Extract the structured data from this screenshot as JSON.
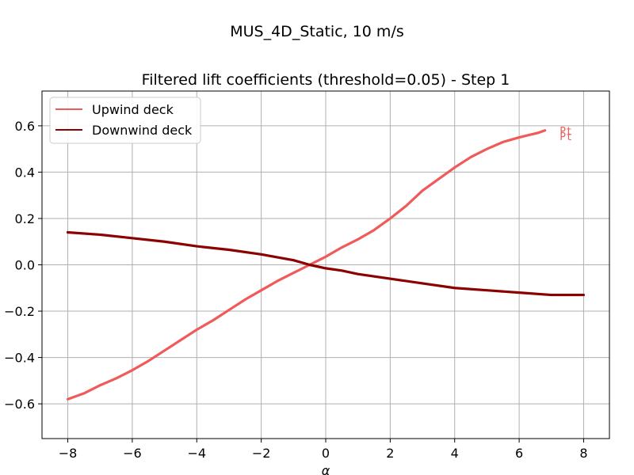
{
  "figure": {
    "suptitle": "MUS_4D_Static, 10 m/s"
  },
  "chart_data": {
    "type": "line",
    "title": "Filtered lift coefficients (threshold=0.05) - Step 1",
    "xlabel": "α",
    "ylabel": "",
    "xlim": [
      -8.8,
      8.8
    ],
    "ylim": [
      -0.75,
      0.75
    ],
    "xticks": [
      -8,
      -6,
      -4,
      -2,
      0,
      2,
      4,
      6,
      8
    ],
    "xtick_labels": [
      "−8",
      "−6",
      "−4",
      "−2",
      "0",
      "2",
      "4",
      "6",
      "8"
    ],
    "yticks": [
      -0.6,
      -0.4,
      -0.2,
      0.0,
      0.2,
      0.4,
      0.6
    ],
    "ytick_labels": [
      "−0.6",
      "−0.4",
      "−0.2",
      "0.0",
      "0.2",
      "0.4",
      "0.6"
    ],
    "grid": true,
    "legend_position": "upper-left",
    "series": [
      {
        "name": "Upwind deck",
        "color": "#f05a5a",
        "x": [
          -8,
          -7.5,
          -7,
          -6.5,
          -6,
          -5.5,
          -5,
          -4.5,
          -4,
          -3.5,
          -3,
          -2.5,
          -2,
          -1.5,
          -1,
          -0.5,
          0,
          0.5,
          1,
          1.5,
          2,
          2.5,
          3,
          3.5,
          4,
          4.5,
          5,
          5.5,
          6,
          6.3,
          6.6,
          6.8
        ],
        "y": [
          -0.58,
          -0.555,
          -0.52,
          -0.49,
          -0.455,
          -0.415,
          -0.37,
          -0.325,
          -0.28,
          -0.24,
          -0.195,
          -0.15,
          -0.11,
          -0.07,
          -0.035,
          0.0,
          0.035,
          0.075,
          0.11,
          0.15,
          0.2,
          0.255,
          0.32,
          0.37,
          0.42,
          0.465,
          0.5,
          0.53,
          0.55,
          0.56,
          0.57,
          0.58
        ]
      },
      {
        "name": "Downwind deck",
        "color": "#8b0000",
        "x": [
          -8,
          -7,
          -6,
          -5,
          -4,
          -3,
          -2,
          -1,
          -0.5,
          0,
          0.5,
          1,
          2,
          3,
          4,
          5,
          6,
          7,
          8
        ],
        "y": [
          0.14,
          0.13,
          0.115,
          0.1,
          0.08,
          0.065,
          0.045,
          0.02,
          0.0,
          -0.015,
          -0.025,
          -0.04,
          -0.06,
          -0.08,
          -0.1,
          -0.11,
          -0.12,
          -0.13,
          -0.13
        ]
      }
    ],
    "annotations": [
      {
        "text": "Pt",
        "x": 7.45,
        "y": 0.58,
        "color": "#f05a5a"
      },
      {
        "text": "Pt",
        "x": 7.45,
        "y": 0.555,
        "color": "#f05a5a"
      }
    ]
  }
}
